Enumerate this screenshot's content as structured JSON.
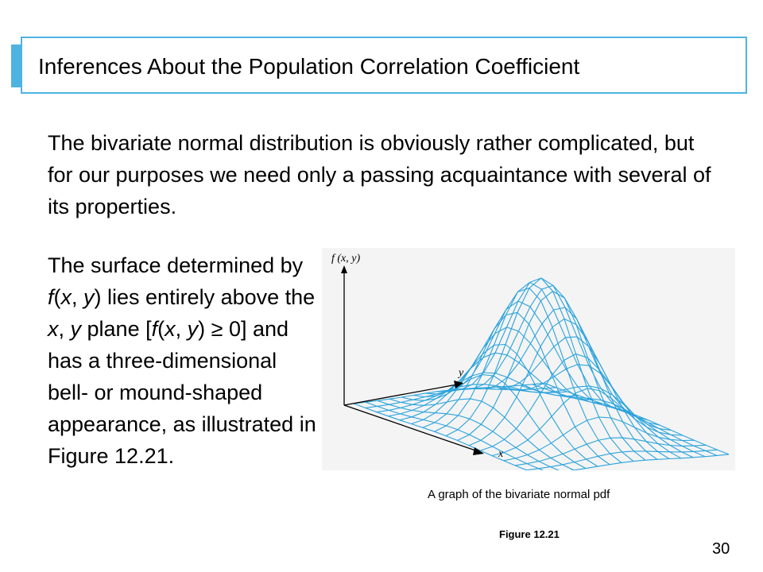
{
  "slide": {
    "title": "Inferences About the Population Correlation Coefficient",
    "paragraph1": "The bivariate normal distribution is obviously rather complicated, but for our purposes we need only a passing acquaintance with several of its properties.",
    "paragraph2": {
      "p1": "The surface determined by ",
      "f1": "f",
      "p2": "(",
      "x1": "x",
      "p3": ", ",
      "y1": "y",
      "p4": ") lies entirely above the ",
      "x2": "x",
      "p5": ", ",
      "y2": "y",
      "p6": " plane [",
      "f2": "f",
      "p7": "(",
      "x3": "x",
      "p8": ", ",
      "y3": "y",
      "p9": ") ≥ 0] and has a three-dimensional bell- or mound-shaped appearance, as illustrated in Figure 12.21."
    },
    "figure": {
      "axis_z": "f (x, y)",
      "axis_y": "y",
      "axis_x": "x",
      "caption": "A graph of the bivariate normal pdf",
      "label": "Figure 12.21"
    },
    "page_number": "30"
  },
  "colors": {
    "accent": "#4fb3e2",
    "mesh": "#2aa3dc"
  }
}
